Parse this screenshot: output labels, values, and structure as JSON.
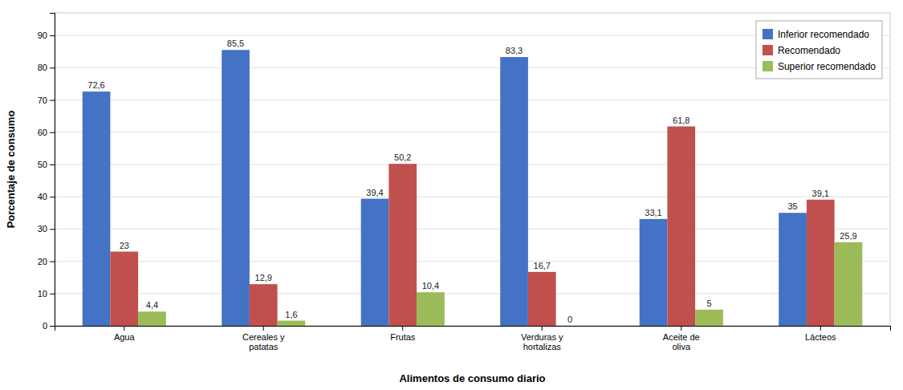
{
  "chart_data": {
    "type": "bar",
    "xlabel": "Alimentos de consumo diario",
    "ylabel": "Porcentaje de consumo",
    "categories": [
      "Agua",
      "Cereales y\npatatas",
      "Frutas",
      "Verduras y\nhortalizas",
      "Aceite de\noliva",
      "Lácteos"
    ],
    "series": [
      {
        "name": "Inferior recomendado",
        "color": "#4472c4",
        "values": [
          72.6,
          85.5,
          39.4,
          83.3,
          33.1,
          35
        ],
        "value_labels": [
          "72,6",
          "85,5",
          "39,4",
          "83,3",
          "33,1",
          "35"
        ]
      },
      {
        "name": "Recomendado",
        "color": "#c0504d",
        "values": [
          23,
          12.9,
          50.2,
          16.7,
          61.8,
          39.1
        ],
        "value_labels": [
          "23",
          "12,9",
          "50,2",
          "16,7",
          "61,8",
          "39,1"
        ]
      },
      {
        "name": "Superior recomendado",
        "color": "#9bbb59",
        "values": [
          4.4,
          1.6,
          10.4,
          0,
          5,
          25.9
        ],
        "value_labels": [
          "4,4",
          "1,6",
          "10,4",
          "0",
          "5",
          "25,9"
        ]
      }
    ],
    "ylim": [
      0,
      97
    ],
    "yticks": [
      0,
      10,
      20,
      30,
      40,
      50,
      60,
      70,
      80,
      90
    ],
    "grid": true,
    "legend": "upper right",
    "data_labels": true
  }
}
